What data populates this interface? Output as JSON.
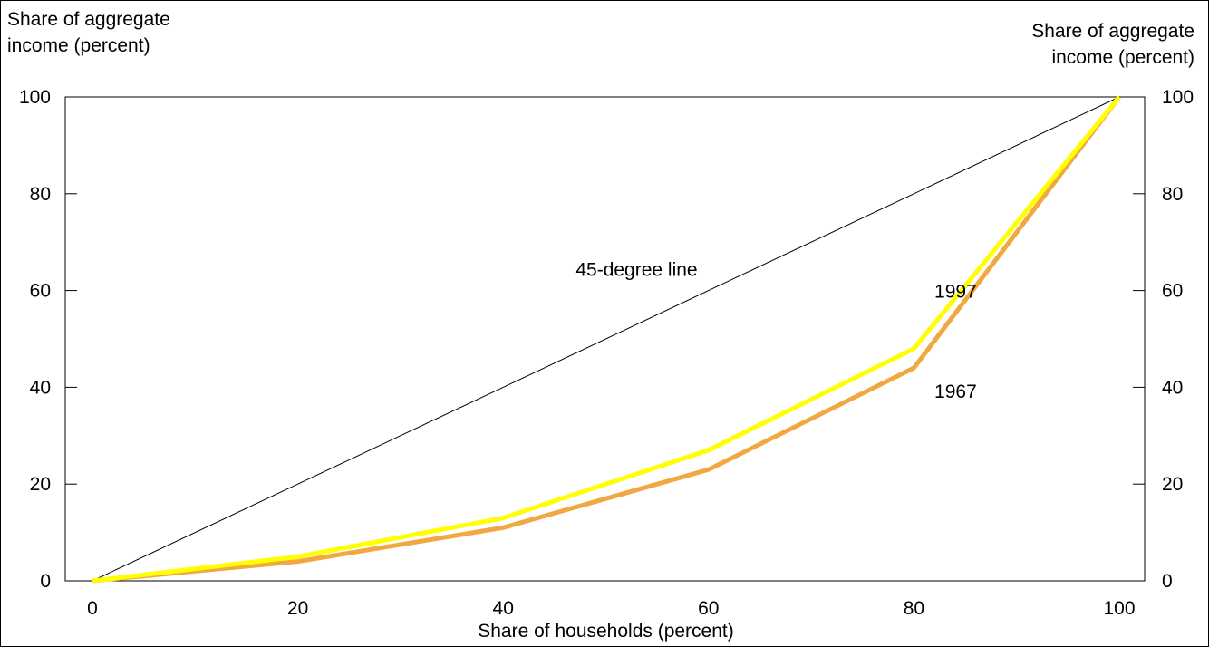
{
  "chart_data": {
    "type": "line",
    "title": "",
    "xlabel": "Share of households (percent)",
    "ylabel_left": [
      "Share of aggregate",
      "income (percent)"
    ],
    "ylabel_right": [
      "Share of aggregate",
      "income (percent)"
    ],
    "xlim": [
      0,
      100
    ],
    "ylim": [
      0,
      100
    ],
    "x_ticks": [
      0,
      20,
      40,
      60,
      80,
      100
    ],
    "y_ticks": [
      0,
      20,
      40,
      60,
      80,
      100
    ],
    "grid": false,
    "legend": "none",
    "x": [
      0,
      20,
      40,
      60,
      80,
      100
    ],
    "series": [
      {
        "name": "45-degree line",
        "values": [
          0,
          20,
          40,
          60,
          80,
          100
        ],
        "color": "#000000"
      },
      {
        "name": "1997",
        "values": [
          0,
          5,
          13,
          27,
          48,
          100
        ],
        "color": "#ffff00"
      },
      {
        "name": "1967",
        "values": [
          0,
          4,
          11,
          23,
          44,
          100
        ],
        "color": "#f2a840"
      }
    ],
    "annotations": [
      {
        "text": "45-degree line",
        "x": 53,
        "y": 63
      },
      {
        "text": "1997",
        "x": 82,
        "y": 58.5
      },
      {
        "text": "1967",
        "x": 82,
        "y": 37.8
      }
    ]
  }
}
